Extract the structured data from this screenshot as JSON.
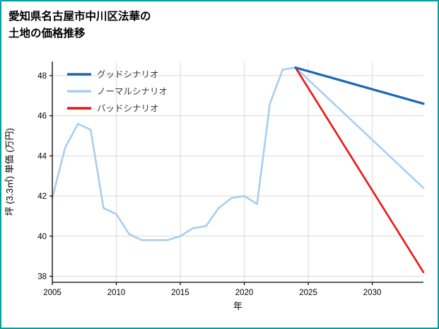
{
  "title": {
    "line1": "愛知県名古屋市中川区法華の",
    "line2": "土地の価格推移"
  },
  "colors": {
    "border": "#00a0a0",
    "grid": "#d9d9d9",
    "axis": "#000000",
    "tick_label": "#000000",
    "legend_label": "#3a3a3a"
  },
  "chart_data": {
    "type": "line",
    "title": "愛知県名古屋市中川区法華の土地の価格推移",
    "xlabel": "年",
    "ylabel": "坪 (3.3㎡) 単価 (万円)",
    "xlim": [
      2005,
      2034
    ],
    "ylim": [
      37.7,
      48.7
    ],
    "xticks": [
      2005,
      2010,
      2015,
      2020,
      2025,
      2030
    ],
    "yticks": [
      38,
      40,
      42,
      44,
      46,
      48
    ],
    "grid": true,
    "legend_position": "upper-left",
    "draw_order": [
      "normal",
      "bad",
      "good"
    ],
    "series": [
      {
        "id": "good",
        "name": "グッドシナリオ",
        "color": "#1769b5",
        "width": 3.2,
        "x": [
          2024,
          2034
        ],
        "values": [
          48.4,
          46.6
        ]
      },
      {
        "id": "normal",
        "name": "ノーマルシナリオ",
        "color": "#a8cef1",
        "width": 2.6,
        "x": [
          2005,
          2006,
          2007,
          2008,
          2009,
          2010,
          2011,
          2012,
          2013,
          2014,
          2015,
          2016,
          2017,
          2018,
          2019,
          2020,
          2021,
          2022,
          2023,
          2024,
          2034
        ],
        "values": [
          41.9,
          44.4,
          45.6,
          45.3,
          41.4,
          41.1,
          40.1,
          39.8,
          39.8,
          39.8,
          40.0,
          40.4,
          40.5,
          41.4,
          41.9,
          42.0,
          41.6,
          46.6,
          48.3,
          48.4,
          42.4
        ]
      },
      {
        "id": "bad",
        "name": "バッドシナリオ",
        "color": "#ed1515",
        "width": 2.6,
        "x": [
          2024,
          2034
        ],
        "values": [
          48.4,
          38.2
        ]
      }
    ]
  }
}
